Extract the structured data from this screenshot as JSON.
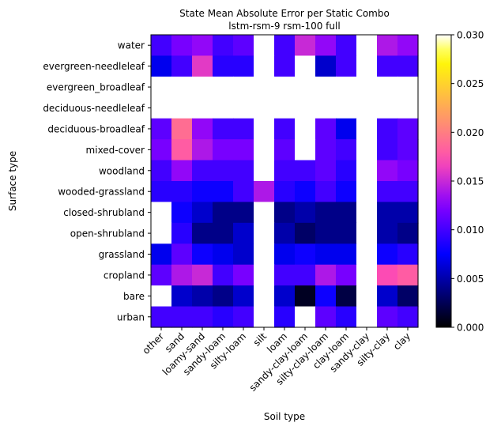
{
  "chart_data": {
    "type": "heatmap",
    "title": "State Mean Absolute Error per Static Combo",
    "subtitle": "lstm-rsm-9 rsm-100 full",
    "xlabel": "Soil type",
    "ylabel": "Surface type",
    "x_categories": [
      "other",
      "sand",
      "loamy-sand",
      "sandy-loam",
      "silty-loam",
      "silt",
      "loam",
      "sandy-clay-loam",
      "silty-clay-loam",
      "clay-loam",
      "sandy-clay",
      "silty-clay",
      "clay"
    ],
    "y_categories": [
      "water",
      "evergreen-needleleaf",
      "evergreen_broadleaf",
      "deciduous-needleleaf",
      "deciduous-broadleaf",
      "mixed-cover",
      "woodland",
      "wooded-grassland",
      "closed-shrubland",
      "open-shrubland",
      "grassland",
      "cropland",
      "bare",
      "urban"
    ],
    "values": [
      [
        0.01,
        0.012,
        0.013,
        0.01,
        0.011,
        null,
        0.01,
        0.015,
        0.013,
        0.01,
        null,
        0.014,
        0.013
      ],
      [
        0.007,
        0.01,
        0.016,
        0.009,
        0.009,
        null,
        0.01,
        null,
        0.006,
        0.01,
        null,
        0.01,
        0.01
      ],
      [
        null,
        null,
        null,
        null,
        null,
        null,
        null,
        null,
        null,
        null,
        null,
        null,
        null
      ],
      [
        null,
        null,
        null,
        null,
        null,
        null,
        null,
        null,
        null,
        null,
        null,
        null,
        null
      ],
      [
        0.011,
        0.019,
        0.013,
        0.01,
        0.01,
        null,
        0.01,
        null,
        0.011,
        0.007,
        null,
        0.01,
        0.011
      ],
      [
        0.012,
        0.018,
        0.014,
        0.012,
        0.012,
        null,
        0.011,
        null,
        0.011,
        0.01,
        null,
        0.01,
        0.011
      ],
      [
        0.01,
        0.013,
        0.01,
        0.01,
        0.01,
        null,
        0.01,
        0.01,
        0.011,
        0.009,
        null,
        0.013,
        0.012
      ],
      [
        0.009,
        0.009,
        0.008,
        0.008,
        0.01,
        0.014,
        0.009,
        0.008,
        0.01,
        0.008,
        null,
        0.01,
        0.01
      ],
      [
        null,
        0.008,
        0.006,
        0.004,
        0.004,
        null,
        0.004,
        0.005,
        0.004,
        0.004,
        null,
        0.005,
        0.005
      ],
      [
        null,
        0.009,
        0.004,
        0.004,
        0.006,
        null,
        0.005,
        0.003,
        0.004,
        0.004,
        null,
        0.005,
        0.004
      ],
      [
        0.007,
        0.011,
        0.008,
        0.007,
        0.006,
        null,
        0.007,
        0.008,
        0.007,
        0.007,
        null,
        0.008,
        0.009
      ],
      [
        0.011,
        0.014,
        0.015,
        0.01,
        0.012,
        null,
        0.01,
        0.01,
        0.014,
        0.012,
        null,
        0.017,
        0.018
      ],
      [
        null,
        0.006,
        0.005,
        0.004,
        0.006,
        null,
        0.006,
        0.001,
        0.008,
        0.002,
        null,
        0.006,
        0.003
      ],
      [
        0.01,
        0.01,
        0.01,
        0.009,
        0.01,
        null,
        0.009,
        null,
        0.011,
        0.009,
        null,
        0.011,
        0.01
      ]
    ],
    "colormap": "gnuplot2",
    "missing_color": "#ffffff",
    "colorbar": {
      "min": 0.0,
      "max": 0.03,
      "ticks": [
        0.0,
        0.005,
        0.01,
        0.015,
        0.02,
        0.025,
        0.03
      ],
      "tick_labels": [
        "0.000",
        "0.005",
        "0.010",
        "0.015",
        "0.020",
        "0.025",
        "0.030"
      ]
    }
  }
}
